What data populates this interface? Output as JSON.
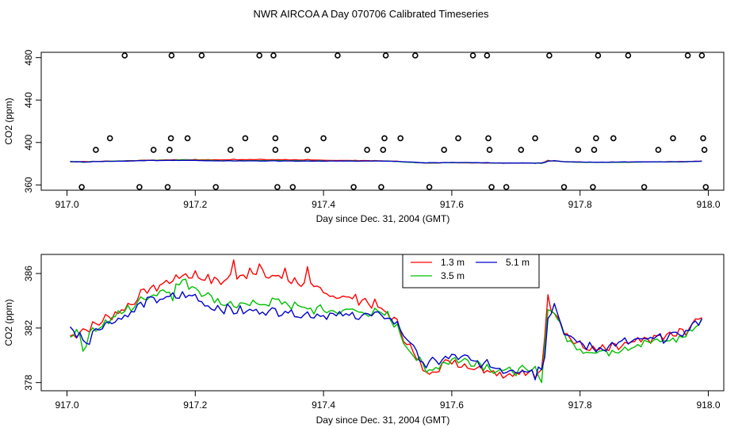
{
  "page_title": "NWR AIRCOA A  Day 070706  Calibrated Timeseries",
  "chart_data": [
    {
      "type": "scatter+line",
      "title": "NWR AIRCOA A  Day 070706  Calibrated Timeseries",
      "xlabel": "Day since Dec. 31, 2004 (GMT)",
      "ylabel": "CO2 (ppm)",
      "xlim": [
        917.0,
        918.0
      ],
      "ylim": [
        355,
        485
      ],
      "xticks": [
        917.0,
        917.2,
        917.4,
        917.6,
        917.8,
        918.0
      ],
      "xtick_labels": [
        "917.0",
        "917.2",
        "917.4",
        "917.6",
        "917.8",
        "918.0"
      ],
      "yticks": [
        360,
        400,
        440,
        480
      ],
      "ytick_labels": [
        "360",
        "400",
        "440",
        "480"
      ],
      "reference_points": [
        {
          "x": 917.023,
          "y": 358
        },
        {
          "x": 917.045,
          "y": 393
        },
        {
          "x": 917.067,
          "y": 404
        },
        {
          "x": 917.09,
          "y": 482
        },
        {
          "x": 917.113,
          "y": 358
        },
        {
          "x": 917.135,
          "y": 393
        },
        {
          "x": 917.157,
          "y": 358
        },
        {
          "x": 917.16,
          "y": 393
        },
        {
          "x": 917.162,
          "y": 404
        },
        {
          "x": 917.163,
          "y": 482
        },
        {
          "x": 917.188,
          "y": 404
        },
        {
          "x": 917.21,
          "y": 482
        },
        {
          "x": 917.232,
          "y": 358
        },
        {
          "x": 917.255,
          "y": 393
        },
        {
          "x": 917.278,
          "y": 404
        },
        {
          "x": 917.3,
          "y": 482
        },
        {
          "x": 917.322,
          "y": 482
        },
        {
          "x": 917.325,
          "y": 393
        },
        {
          "x": 917.325,
          "y": 404
        },
        {
          "x": 917.328,
          "y": 358
        },
        {
          "x": 917.352,
          "y": 358
        },
        {
          "x": 917.375,
          "y": 393
        },
        {
          "x": 917.4,
          "y": 404
        },
        {
          "x": 917.422,
          "y": 482
        },
        {
          "x": 917.447,
          "y": 358
        },
        {
          "x": 917.468,
          "y": 393
        },
        {
          "x": 917.49,
          "y": 358
        },
        {
          "x": 917.493,
          "y": 393
        },
        {
          "x": 917.495,
          "y": 404
        },
        {
          "x": 917.497,
          "y": 482
        },
        {
          "x": 917.52,
          "y": 404
        },
        {
          "x": 917.543,
          "y": 482
        },
        {
          "x": 917.565,
          "y": 358
        },
        {
          "x": 917.588,
          "y": 393
        },
        {
          "x": 917.61,
          "y": 404
        },
        {
          "x": 917.633,
          "y": 482
        },
        {
          "x": 917.655,
          "y": 482
        },
        {
          "x": 917.657,
          "y": 404
        },
        {
          "x": 917.659,
          "y": 393
        },
        {
          "x": 917.662,
          "y": 358
        },
        {
          "x": 917.685,
          "y": 358
        },
        {
          "x": 917.708,
          "y": 393
        },
        {
          "x": 917.73,
          "y": 404
        },
        {
          "x": 917.752,
          "y": 482
        },
        {
          "x": 917.775,
          "y": 358
        },
        {
          "x": 917.797,
          "y": 393
        },
        {
          "x": 917.82,
          "y": 358
        },
        {
          "x": 917.822,
          "y": 393
        },
        {
          "x": 917.825,
          "y": 404
        },
        {
          "x": 917.828,
          "y": 482
        },
        {
          "x": 917.852,
          "y": 404
        },
        {
          "x": 917.875,
          "y": 482
        },
        {
          "x": 917.9,
          "y": 358
        },
        {
          "x": 917.922,
          "y": 393
        },
        {
          "x": 917.945,
          "y": 404
        },
        {
          "x": 917.968,
          "y": 482
        },
        {
          "x": 917.99,
          "y": 482
        },
        {
          "x": 917.992,
          "y": 404
        },
        {
          "x": 917.994,
          "y": 393
        },
        {
          "x": 917.996,
          "y": 358
        }
      ],
      "series_note": "The three measurement series from the lower panel are drawn compressed at ~380-385 ppm"
    },
    {
      "type": "line",
      "xlabel": "Day since Dec. 31, 2004 (GMT)",
      "ylabel": "CO2 (ppm)",
      "xlim": [
        916.995,
        918.02
      ],
      "ylim": [
        377.4,
        387.4
      ],
      "xticks": [
        917.0,
        917.2,
        917.4,
        917.6,
        917.8,
        918.0
      ],
      "xtick_labels": [
        "917.0",
        "917.2",
        "917.4",
        "917.6",
        "917.8",
        "918.0"
      ],
      "yticks": [
        378,
        382,
        386
      ],
      "ytick_labels": [
        "378",
        "382",
        "386"
      ],
      "legend_position": "top-right",
      "x_start": 917.005,
      "x_step": 0.005,
      "series": [
        {
          "name": "1.3 m",
          "color": "#ff0000",
          "anchors": [
            [
              917.005,
              381.3
            ],
            [
              917.02,
              381.8
            ],
            [
              917.04,
              382.1
            ],
            [
              917.06,
              382.7
            ],
            [
              917.08,
              383.2
            ],
            [
              917.1,
              383.8
            ],
            [
              917.12,
              384.7
            ],
            [
              917.14,
              385.0
            ],
            [
              917.16,
              385.4
            ],
            [
              917.18,
              385.9
            ],
            [
              917.2,
              385.9
            ],
            [
              917.22,
              385.6
            ],
            [
              917.24,
              385.4
            ],
            [
              917.26,
              385.8
            ],
            [
              917.28,
              386.0
            ],
            [
              917.3,
              385.9
            ],
            [
              917.32,
              385.8
            ],
            [
              917.34,
              385.7
            ],
            [
              917.36,
              385.4
            ],
            [
              917.38,
              385.0
            ],
            [
              917.4,
              384.6
            ],
            [
              917.42,
              384.4
            ],
            [
              917.44,
              384.2
            ],
            [
              917.46,
              384.1
            ],
            [
              917.48,
              383.7
            ],
            [
              917.5,
              383.0
            ],
            [
              917.51,
              382.7
            ],
            [
              917.53,
              381.0
            ],
            [
              917.55,
              379.3
            ],
            [
              917.56,
              378.7
            ],
            [
              917.58,
              379.2
            ],
            [
              917.6,
              379.6
            ],
            [
              917.62,
              379.3
            ],
            [
              917.64,
              379.1
            ],
            [
              917.66,
              379.0
            ],
            [
              917.68,
              378.6
            ],
            [
              917.7,
              378.7
            ],
            [
              917.72,
              378.6
            ],
            [
              917.74,
              379.1
            ],
            [
              917.745,
              381.5
            ],
            [
              917.75,
              384.2
            ],
            [
              917.755,
              383.6
            ],
            [
              917.76,
              383.3
            ],
            [
              917.77,
              382.5
            ],
            [
              917.78,
              381.4
            ],
            [
              917.8,
              380.7
            ],
            [
              917.82,
              380.4
            ],
            [
              917.84,
              380.4
            ],
            [
              917.86,
              380.6
            ],
            [
              917.88,
              380.8
            ],
            [
              917.9,
              381.1
            ],
            [
              917.92,
              381.3
            ],
            [
              917.94,
              381.4
            ],
            [
              917.96,
              381.7
            ],
            [
              917.98,
              382.4
            ],
            [
              917.99,
              382.9
            ]
          ],
          "jitter": 0.32,
          "spikes": [
            [
              917.262,
              387.0
            ],
            [
              917.3,
              386.7
            ],
            [
              917.285,
              386.4
            ],
            [
              917.338,
              386.4
            ],
            [
              917.375,
              386.5
            ],
            [
              917.157,
              385.5
            ],
            [
              917.73,
              378.3
            ]
          ]
        },
        {
          "name": "3.5 m",
          "color": "#00c000",
          "anchors": [
            [
              917.005,
              381.1
            ],
            [
              917.015,
              382.2
            ],
            [
              917.025,
              380.6
            ],
            [
              917.04,
              381.9
            ],
            [
              917.06,
              382.4
            ],
            [
              917.08,
              383.0
            ],
            [
              917.1,
              383.5
            ],
            [
              917.12,
              384.2
            ],
            [
              917.14,
              384.6
            ],
            [
              917.16,
              384.9
            ],
            [
              917.18,
              385.4
            ],
            [
              917.2,
              385.0
            ],
            [
              917.22,
              384.4
            ],
            [
              917.24,
              383.9
            ],
            [
              917.26,
              383.7
            ],
            [
              917.28,
              383.6
            ],
            [
              917.3,
              383.8
            ],
            [
              917.32,
              384.0
            ],
            [
              917.34,
              383.9
            ],
            [
              917.36,
              383.5
            ],
            [
              917.38,
              383.4
            ],
            [
              917.4,
              383.3
            ],
            [
              917.42,
              383.2
            ],
            [
              917.44,
              383.3
            ],
            [
              917.46,
              383.2
            ],
            [
              917.48,
              383.1
            ],
            [
              917.5,
              382.9
            ],
            [
              917.51,
              382.4
            ],
            [
              917.53,
              380.7
            ],
            [
              917.55,
              379.5
            ],
            [
              917.56,
              378.8
            ],
            [
              917.58,
              379.3
            ],
            [
              917.6,
              379.7
            ],
            [
              917.62,
              379.6
            ],
            [
              917.64,
              379.5
            ],
            [
              917.66,
              379.1
            ],
            [
              917.68,
              378.8
            ],
            [
              917.7,
              378.9
            ],
            [
              917.72,
              378.8
            ],
            [
              917.74,
              378.9
            ],
            [
              917.745,
              380.5
            ],
            [
              917.75,
              383.6
            ],
            [
              917.755,
              383.3
            ],
            [
              917.76,
              383.1
            ],
            [
              917.77,
              382.2
            ],
            [
              917.78,
              381.1
            ],
            [
              917.8,
              380.5
            ],
            [
              917.82,
              380.3
            ],
            [
              917.84,
              380.2
            ],
            [
              917.86,
              380.5
            ],
            [
              917.88,
              380.7
            ],
            [
              917.9,
              380.9
            ],
            [
              917.92,
              381.0
            ],
            [
              917.94,
              381.1
            ],
            [
              917.96,
              381.3
            ],
            [
              917.98,
              382.1
            ],
            [
              917.99,
              382.7
            ]
          ],
          "jitter": 0.3,
          "spikes": [
            [
              917.025,
              380.3
            ],
            [
              917.165,
              384.0
            ],
            [
              917.74,
              378.0
            ]
          ]
        },
        {
          "name": "5.1 m",
          "color": "#0000cc",
          "anchors": [
            [
              917.005,
              381.8
            ],
            [
              917.02,
              381.5
            ],
            [
              917.03,
              381.0
            ],
            [
              917.04,
              381.9
            ],
            [
              917.06,
              382.3
            ],
            [
              917.08,
              382.7
            ],
            [
              917.1,
              383.1
            ],
            [
              917.12,
              383.9
            ],
            [
              917.14,
              384.1
            ],
            [
              917.16,
              384.2
            ],
            [
              917.18,
              384.4
            ],
            [
              917.2,
              384.3
            ],
            [
              917.22,
              383.6
            ],
            [
              917.24,
              383.5
            ],
            [
              917.26,
              383.3
            ],
            [
              917.28,
              383.2
            ],
            [
              917.3,
              383.3
            ],
            [
              917.32,
              383.2
            ],
            [
              917.34,
              383.3
            ],
            [
              917.36,
              383.0
            ],
            [
              917.38,
              383.0
            ],
            [
              917.4,
              383.0
            ],
            [
              917.42,
              382.9
            ],
            [
              917.44,
              382.9
            ],
            [
              917.46,
              383.0
            ],
            [
              917.48,
              382.9
            ],
            [
              917.5,
              382.8
            ],
            [
              917.51,
              382.5
            ],
            [
              917.53,
              381.3
            ],
            [
              917.55,
              379.8
            ],
            [
              917.56,
              379.3
            ],
            [
              917.58,
              379.6
            ],
            [
              917.6,
              379.9
            ],
            [
              917.62,
              379.8
            ],
            [
              917.64,
              379.4
            ],
            [
              917.66,
              379.3
            ],
            [
              917.68,
              378.9
            ],
            [
              917.7,
              379.0
            ],
            [
              917.72,
              378.9
            ],
            [
              917.74,
              379.2
            ],
            [
              917.745,
              380.0
            ],
            [
              917.75,
              382.9
            ],
            [
              917.755,
              383.4
            ],
            [
              917.76,
              383.7
            ],
            [
              917.77,
              382.4
            ],
            [
              917.78,
              381.3
            ],
            [
              917.8,
              380.9
            ],
            [
              917.82,
              380.5
            ],
            [
              917.84,
              380.6
            ],
            [
              917.86,
              380.9
            ],
            [
              917.88,
              381.0
            ],
            [
              917.9,
              381.1
            ],
            [
              917.92,
              381.2
            ],
            [
              917.94,
              381.4
            ],
            [
              917.96,
              381.6
            ],
            [
              917.98,
              382.3
            ],
            [
              917.99,
              382.8
            ]
          ],
          "jitter": 0.3,
          "spikes": [
            [
              917.035,
              380.8
            ],
            [
              917.73,
              378.2
            ]
          ]
        }
      ]
    }
  ]
}
